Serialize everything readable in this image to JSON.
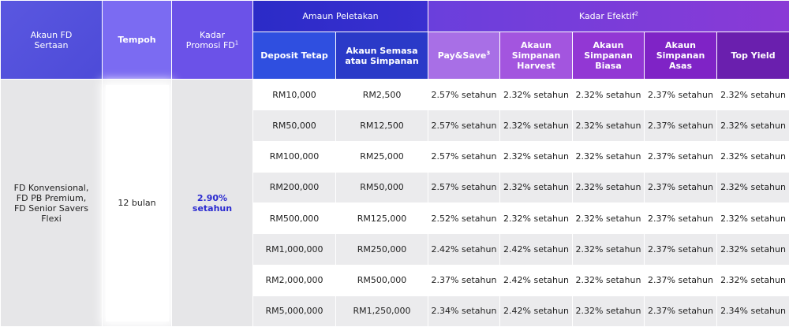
{
  "headers": {
    "akaun": [
      "Akaun FD",
      "Sertaan"
    ],
    "tempoh": "Tempoh",
    "kadar": [
      "Kadar",
      "Promosi FD"
    ],
    "kadar_sup": "1",
    "amaun_group": "Amaun Peletakan",
    "efektif_group": "Kadar Efektif",
    "efektif_sup": "2",
    "deposit_tetap": "Deposit Tetap",
    "akaun_semasa": [
      "Akaun Semasa",
      "atau Simpanan"
    ],
    "paysave": "Pay&Save",
    "paysave_sup": "3",
    "harvest": [
      "Akaun",
      "Simpanan",
      "Harvest"
    ],
    "biasa": [
      "Akaun",
      "Simpanan",
      "Biasa"
    ],
    "asas": [
      "Akaun",
      "Simpanan",
      "Asas"
    ],
    "top_yield": "Top Yield"
  },
  "akaun_value": [
    "FD Konvensional,",
    "FD PB Premium,",
    "FD Senior Savers",
    "Flexi"
  ],
  "tempoh_value": "12 bulan",
  "kadar_value": [
    "2.90%",
    "setahun"
  ],
  "rows": [
    {
      "deposit": "RM10,000",
      "semasa": "RM2,500",
      "paysave": "2.57% setahun",
      "harvest": "2.32% setahun",
      "biasa": "2.32% setahun",
      "asas": "2.37% setahun",
      "top": "2.32% setahun"
    },
    {
      "deposit": "RM50,000",
      "semasa": "RM12,500",
      "paysave": "2.57% setahun",
      "harvest": "2.32% setahun",
      "biasa": "2.32% setahun",
      "asas": "2.37% setahun",
      "top": "2.32% setahun"
    },
    {
      "deposit": "RM100,000",
      "semasa": "RM25,000",
      "paysave": "2.57% setahun",
      "harvest": "2.32% setahun",
      "biasa": "2.32% setahun",
      "asas": "2.37% setahun",
      "top": "2.32% setahun"
    },
    {
      "deposit": "RM200,000",
      "semasa": "RM50,000",
      "paysave": "2.57% setahun",
      "harvest": "2.32% setahun",
      "biasa": "2.32% setahun",
      "asas": "2.37% setahun",
      "top": "2.32% setahun"
    },
    {
      "deposit": "RM500,000",
      "semasa": "RM125,000",
      "paysave": "2.52% setahun",
      "harvest": "2.32% setahun",
      "biasa": "2.32% setahun",
      "asas": "2.37% setahun",
      "top": "2.32% setahun"
    },
    {
      "deposit": "RM1,000,000",
      "semasa": "RM250,000",
      "paysave": "2.42% setahun",
      "harvest": "2.42% setahun",
      "biasa": "2.32% setahun",
      "asas": "2.37% setahun",
      "top": "2.32% setahun"
    },
    {
      "deposit": "RM2,000,000",
      "semasa": "RM500,000",
      "paysave": "2.37% setahun",
      "harvest": "2.42% setahun",
      "biasa": "2.32% setahun",
      "asas": "2.37% setahun",
      "top": "2.32% setahun"
    },
    {
      "deposit": "RM5,000,000",
      "semasa": "RM1,250,000",
      "paysave": "2.34% setahun",
      "harvest": "2.42% setahun",
      "biasa": "2.32% setahun",
      "asas": "2.37% setahun",
      "top": "2.34% setahun"
    }
  ]
}
